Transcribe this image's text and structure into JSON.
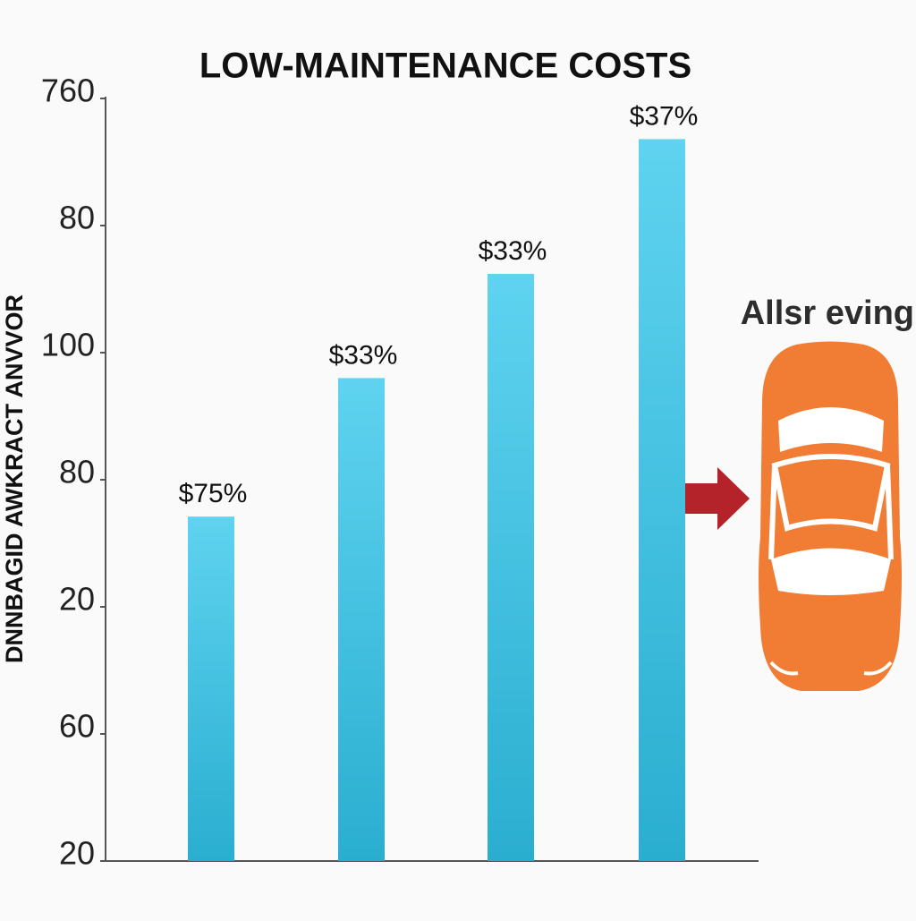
{
  "chart_data": {
    "type": "bar",
    "title": "LOW-MAINTENANCE COSTS",
    "y_label": "DNNBAGID AWKRACT ANVVOR",
    "side_note": "Allsr eving",
    "categories": [
      null,
      null,
      null,
      null
    ],
    "values": [
      2.71,
      3.8,
      4.62,
      5.68
    ],
    "annotations": [
      "$75%",
      "$33%",
      "$33%",
      "$37%"
    ],
    "color": "#3cc0e2",
    "ylim": [
      0,
      6
    ],
    "yticks": [
      {
        "value": 0,
        "label": "20"
      },
      {
        "value": 1,
        "label": "60"
      },
      {
        "value": 2,
        "label": "20"
      },
      {
        "value": 3,
        "label": "80"
      },
      {
        "value": 4,
        "label": "100"
      },
      {
        "value": 5,
        "label": "80"
      },
      {
        "value": 6,
        "label": "760"
      }
    ],
    "grid": false
  }
}
